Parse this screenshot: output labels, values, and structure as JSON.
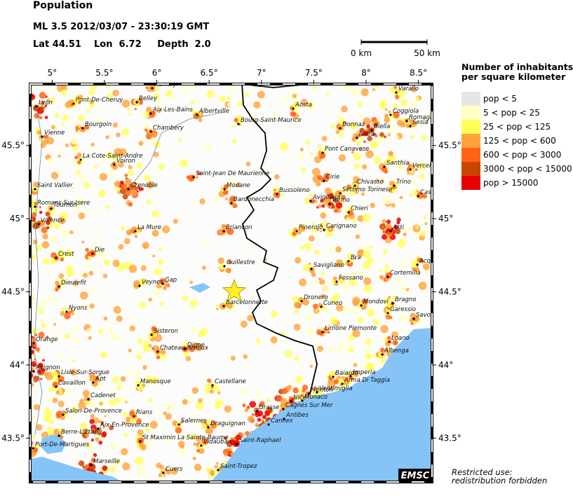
{
  "header": {
    "title": "Population",
    "event": "ML 3.5  2012/03/07 - 23:30:19 GMT",
    "location": "Lat 44.51    Lon  6.72     Depth  2.0"
  },
  "scale_bar": {
    "start": "0 km",
    "end": "50 km"
  },
  "map": {
    "xlim": [
      4.79,
      8.63
    ],
    "ylim": [
      43.2,
      45.92
    ],
    "xticks": [
      {
        "value": 5,
        "label": "5°"
      },
      {
        "value": 5.5,
        "label": "5.5°"
      },
      {
        "value": 6,
        "label": "6°"
      },
      {
        "value": 6.5,
        "label": "6.5°"
      },
      {
        "value": 7,
        "label": "7°"
      },
      {
        "value": 7.5,
        "label": "7.5°"
      },
      {
        "value": 8,
        "label": "8°"
      },
      {
        "value": 8.5,
        "label": "8.5°"
      }
    ],
    "yticks": [
      {
        "value": 43.5,
        "label": "43.5°"
      },
      {
        "value": 44,
        "label": "44°"
      },
      {
        "value": 44.5,
        "label": "44.5°"
      },
      {
        "value": 45,
        "label": "45°"
      },
      {
        "value": 45.5,
        "label": "45.5°"
      }
    ],
    "cities": [
      "Lyon",
      "Pont-De-Cheruy",
      "Belley",
      "Rumilly",
      "Aix-Les-Bains",
      "Chambery",
      "Albertville",
      "Bourgoin",
      "Vienne",
      "La Cote-Saint-Andre",
      "Voiron",
      "Grenoble",
      "Saint Vallier",
      "Romans-Sur-Isere",
      "Tournon",
      "Valence",
      "La Mure",
      "Crest",
      "Die",
      "Dieulefit",
      "Nyons",
      "Veynes",
      "Gap",
      "Sisteron",
      "Chateau-Arnoux",
      "Digne",
      "Orange",
      "Avignon",
      "Lisle-Sur-Sorgue",
      "Apt",
      "Cavaillon",
      "Manosque",
      "Cadenet",
      "Salon-De-Provence",
      "Rians",
      "Aix-En-Provence",
      "Berre-L'Etang",
      "Port-De-Martigues",
      "Marseille",
      "St Maximin La Sainte-Baume",
      "Salernes",
      "Draguignan",
      "Vidauban",
      "Saint-Raphael",
      "Cuers",
      "Saint-Tropez",
      "Castellane",
      "Grasse",
      "Cagnes Sur Mer",
      "Cannes",
      "Antibes",
      "Nice",
      "Monaco",
      "Menton",
      "Ventimiglia",
      "Imperia",
      "Arma Di Taggia",
      "Baiardo",
      "Albenga",
      "Loano",
      "Savona",
      "Garessio",
      "Limone Piemonte",
      "Mondovi",
      "Bragno",
      "Cuneo",
      "Dronero",
      "Fossano",
      "Savigliano",
      "Bra",
      "Cortemilia",
      "Acqui",
      "Asti",
      "Pinerolo",
      "Carignano",
      "Chieri",
      "Torino",
      "Avigliana",
      "Bussoleno",
      "Settimo Torinese",
      "Chivasso",
      "Trino",
      "Casale",
      "Cirie",
      "Pont Canavese",
      "Ivrea",
      "Santhia",
      "Vercelli",
      "Biella",
      "Donnaz",
      "Coggiola",
      "Romagnano",
      "Sesia",
      "Varallo",
      "Aosta",
      "Bourg-Saint-Maurice",
      "Saint-Jean De Maurienne",
      "Modane",
      "Bardonecchia",
      "Briancon",
      "Guillestre",
      "Barcelonnette"
    ],
    "logo": "EMSC"
  },
  "legend": {
    "title": [
      "Number of inhabitants",
      "per square kilometer"
    ],
    "entries": [
      {
        "label": "pop < 5",
        "color": "#e6e6e6"
      },
      {
        "label": "5 < pop < 25",
        "color": "#ffffc8"
      },
      {
        "label": "25 < pop < 125",
        "color": "#ffff5a"
      },
      {
        "label": "125 < pop < 600",
        "color": "#ffa23c"
      },
      {
        "label": "600 < pop < 3000",
        "color": "#ff6414"
      },
      {
        "label": "3000 < pop < 15000",
        "color": "#c84600"
      },
      {
        "label": "pop > 15000",
        "color": "#e60000"
      }
    ]
  },
  "footer": [
    "Restricted use:",
    "redistribution forbidden"
  ]
}
